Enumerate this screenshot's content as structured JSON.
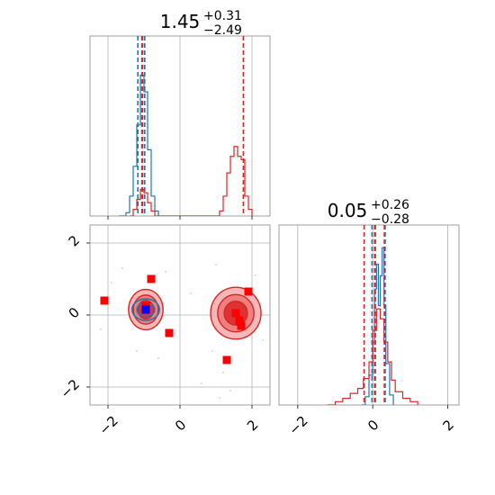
{
  "colors": {
    "blue": "#1f77b4",
    "red": "#d62728",
    "marker_red": "#ff0000",
    "marker_blue": "#0000ff",
    "grid": "#b0b0b0",
    "axis": "#888888"
  },
  "chart_data": [
    {
      "panel": "top-left",
      "type": "histogram",
      "title": {
        "value": "1.45",
        "plus": "+0.31",
        "minus": "−2.49"
      },
      "xlim": [
        -2.5,
        2.5
      ],
      "xticks": [
        -2,
        0,
        2
      ],
      "grid": true,
      "series": [
        {
          "color": "blue",
          "steps": [
            [
              -1.7,
              0.0
            ],
            [
              -1.5,
              0.02
            ],
            [
              -1.4,
              0.12
            ],
            [
              -1.3,
              0.3
            ],
            [
              -1.2,
              0.55
            ],
            [
              -1.1,
              0.85
            ],
            [
              -1.0,
              0.75
            ],
            [
              -0.9,
              0.4
            ],
            [
              -0.8,
              0.12
            ],
            [
              -0.7,
              0.03
            ],
            [
              -0.6,
              0.0
            ]
          ],
          "quantiles": [
            -1.17,
            -1.06,
            -0.98
          ]
        },
        {
          "color": "red",
          "steps": [
            [
              -1.4,
              0.0
            ],
            [
              -1.3,
              0.04
            ],
            [
              -1.2,
              0.1
            ],
            [
              -1.1,
              0.16
            ],
            [
              -1.0,
              0.14
            ],
            [
              -0.9,
              0.08
            ],
            [
              -0.8,
              0.03
            ],
            [
              -0.7,
              0.0
            ],
            [
              1.0,
              0.0
            ],
            [
              1.1,
              0.03
            ],
            [
              1.2,
              0.12
            ],
            [
              1.3,
              0.26
            ],
            [
              1.4,
              0.36
            ],
            [
              1.5,
              0.42
            ],
            [
              1.6,
              0.36
            ],
            [
              1.7,
              0.34
            ],
            [
              1.8,
              0.12
            ],
            [
              1.9,
              0.04
            ],
            [
              2.0,
              0.0
            ]
          ],
          "quantiles": [
            -1.04,
            1.76
          ]
        }
      ]
    },
    {
      "panel": "bottom-left",
      "type": "contour-scatter",
      "xlim": [
        -2.5,
        2.5
      ],
      "ylim": [
        -2.5,
        2.5
      ],
      "xticks": [
        -2,
        0,
        2
      ],
      "yticks": [
        2,
        0,
        -2
      ],
      "grid": true,
      "contours": [
        {
          "color": "red",
          "cx": -0.95,
          "cy": 0.15,
          "rx": 0.48,
          "ry": 0.56
        },
        {
          "color": "red",
          "cx": 1.55,
          "cy": 0.05,
          "rx": 0.7,
          "ry": 0.72
        },
        {
          "color": "blue",
          "cx": -0.95,
          "cy": 0.15,
          "rx": 0.38,
          "ry": 0.3
        }
      ],
      "red_markers": [
        [
          -2.1,
          0.4
        ],
        [
          -0.8,
          1.0
        ],
        [
          -0.3,
          -0.5
        ],
        [
          1.3,
          -1.25
        ],
        [
          1.9,
          0.65
        ],
        [
          1.55,
          0.05
        ],
        [
          1.65,
          -0.15
        ],
        [
          1.7,
          -0.3
        ],
        [
          -0.95,
          0.25
        ]
      ],
      "blue_markers": [
        [
          -0.95,
          0.15
        ]
      ],
      "noise_points": [
        [
          -1.9,
          0.9
        ],
        [
          -1.6,
          1.3
        ],
        [
          -0.4,
          1.2
        ],
        [
          0.9,
          -1.0
        ],
        [
          1.1,
          -2.3
        ],
        [
          1.2,
          -1.6
        ],
        [
          2.1,
          1.1
        ],
        [
          2.3,
          -0.7
        ],
        [
          -2.2,
          -0.4
        ],
        [
          0.3,
          0.6
        ],
        [
          0.6,
          -1.9
        ],
        [
          1.0,
          1.4
        ],
        [
          -1.2,
          -1.0
        ],
        [
          2.2,
          0.3
        ],
        [
          1.4,
          -2.1
        ],
        [
          -0.6,
          -1.2
        ]
      ]
    },
    {
      "panel": "bottom-right",
      "type": "histogram",
      "title": {
        "value": "0.05",
        "plus": "+0.26",
        "minus": "−0.28"
      },
      "xlim": [
        -2.5,
        2.3
      ],
      "xticks": [
        -2,
        0,
        2
      ],
      "grid": true,
      "series": [
        {
          "color": "blue",
          "steps": [
            [
              -0.3,
              0.0
            ],
            [
              -0.2,
              0.05
            ],
            [
              -0.1,
              0.18
            ],
            [
              0.0,
              0.38
            ],
            [
              0.05,
              0.7
            ],
            [
              0.1,
              0.85
            ],
            [
              0.15,
              0.6
            ],
            [
              0.2,
              0.78
            ],
            [
              0.25,
              0.95
            ],
            [
              0.3,
              0.6
            ],
            [
              0.35,
              0.25
            ],
            [
              0.45,
              0.06
            ],
            [
              0.55,
              0.0
            ]
          ],
          "quantiles": [
            -0.02,
            0.07,
            0.33
          ]
        },
        {
          "color": "red",
          "steps": [
            [
              -1.2,
              0.0
            ],
            [
              -1.0,
              0.02
            ],
            [
              -0.8,
              0.04
            ],
            [
              -0.6,
              0.07
            ],
            [
              -0.4,
              0.1
            ],
            [
              -0.25,
              0.16
            ],
            [
              -0.1,
              0.26
            ],
            [
              0.0,
              0.45
            ],
            [
              0.1,
              0.58
            ],
            [
              0.2,
              0.52
            ],
            [
              0.3,
              0.38
            ],
            [
              0.4,
              0.26
            ],
            [
              0.5,
              0.15
            ],
            [
              0.6,
              0.08
            ],
            [
              0.8,
              0.04
            ],
            [
              1.0,
              0.02
            ],
            [
              1.2,
              0.0
            ]
          ],
          "quantiles": [
            -0.23,
            0.05,
            0.31
          ]
        }
      ]
    }
  ]
}
